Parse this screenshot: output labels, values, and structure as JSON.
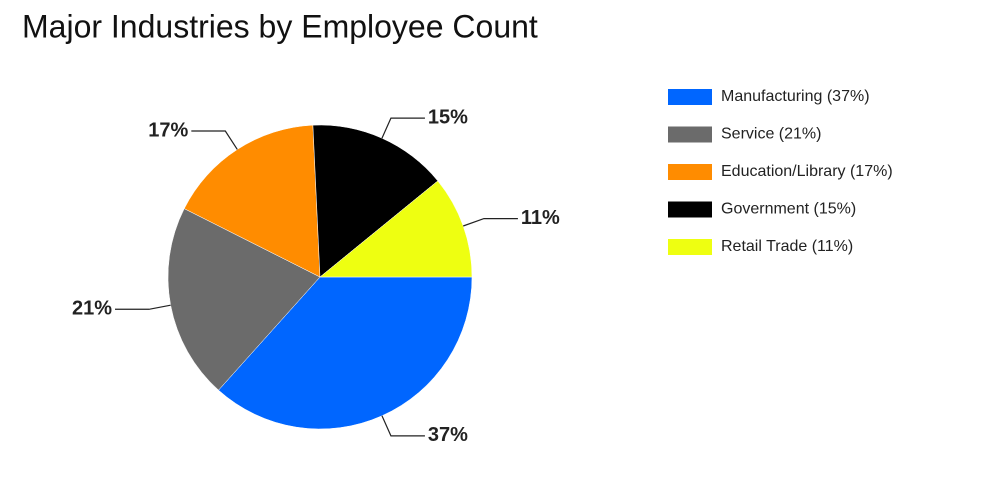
{
  "chart_data": {
    "type": "pie",
    "title": "Major Industries by Employee Count",
    "categories": [
      "Manufacturing (37%)",
      "Service (21%)",
      "Education/Library (17%)",
      "Government (15%)",
      "Retail Trade (11%)"
    ],
    "values": [
      37,
      21,
      17,
      15,
      11
    ],
    "value_labels": [
      "37%",
      "21%",
      "17%",
      "15%",
      "11%"
    ],
    "colors": [
      "#0066ff",
      "#6b6b6b",
      "#ff8c00",
      "#000000",
      "#eeff11"
    ]
  }
}
